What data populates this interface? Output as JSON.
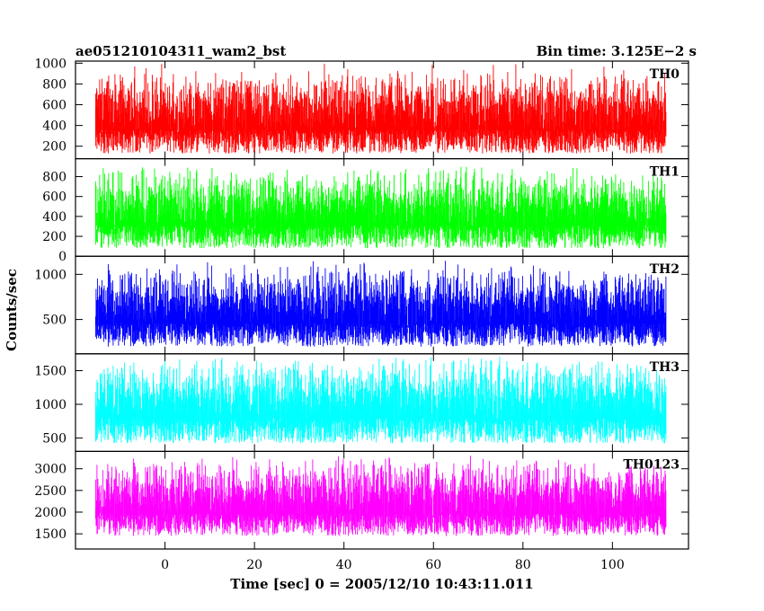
{
  "header": {
    "title": "ae051210104311_wam2_bst",
    "bin_time": "Bin time: 3.125E−2 s"
  },
  "axes": {
    "ylabel": "Counts/sec",
    "xlabel": "Time [sec] 0 = 2005/12/10 10:43:11.011"
  },
  "chart_data": {
    "type": "line",
    "x_range": [
      -15.5,
      112
    ],
    "xlim": [
      -20,
      117
    ],
    "x_ticks": [
      0,
      20,
      40,
      60,
      80,
      100
    ],
    "bin_time_s": 0.03125,
    "panels": [
      {
        "name": "TH0",
        "color": "#ff0000",
        "ylim": [
          80,
          1020
        ],
        "y_ticks": [
          200,
          400,
          600,
          800,
          1000
        ],
        "low": 130,
        "high": 800,
        "spike": 1000
      },
      {
        "name": "TH1",
        "color": "#00ff00",
        "ylim": [
          0,
          980
        ],
        "y_ticks": [
          0,
          200,
          400,
          600,
          800
        ],
        "low": 80,
        "high": 750,
        "spike": 900
      },
      {
        "name": "TH2",
        "color": "#0000ff",
        "ylim": [
          120,
          1200
        ],
        "y_ticks": [
          500,
          1000
        ],
        "low": 200,
        "high": 950,
        "spike": 1150
      },
      {
        "name": "TH3",
        "color": "#00ffff",
        "ylim": [
          300,
          1750
        ],
        "y_ticks": [
          500,
          1000,
          1500
        ],
        "low": 420,
        "high": 1500,
        "spike": 1650
      },
      {
        "name": "TH0123",
        "color": "#ff00ff",
        "ylim": [
          1150,
          3400
        ],
        "y_ticks": [
          1500,
          2000,
          2500,
          3000
        ],
        "low": 1450,
        "high": 2950,
        "spike": 3300
      }
    ]
  }
}
